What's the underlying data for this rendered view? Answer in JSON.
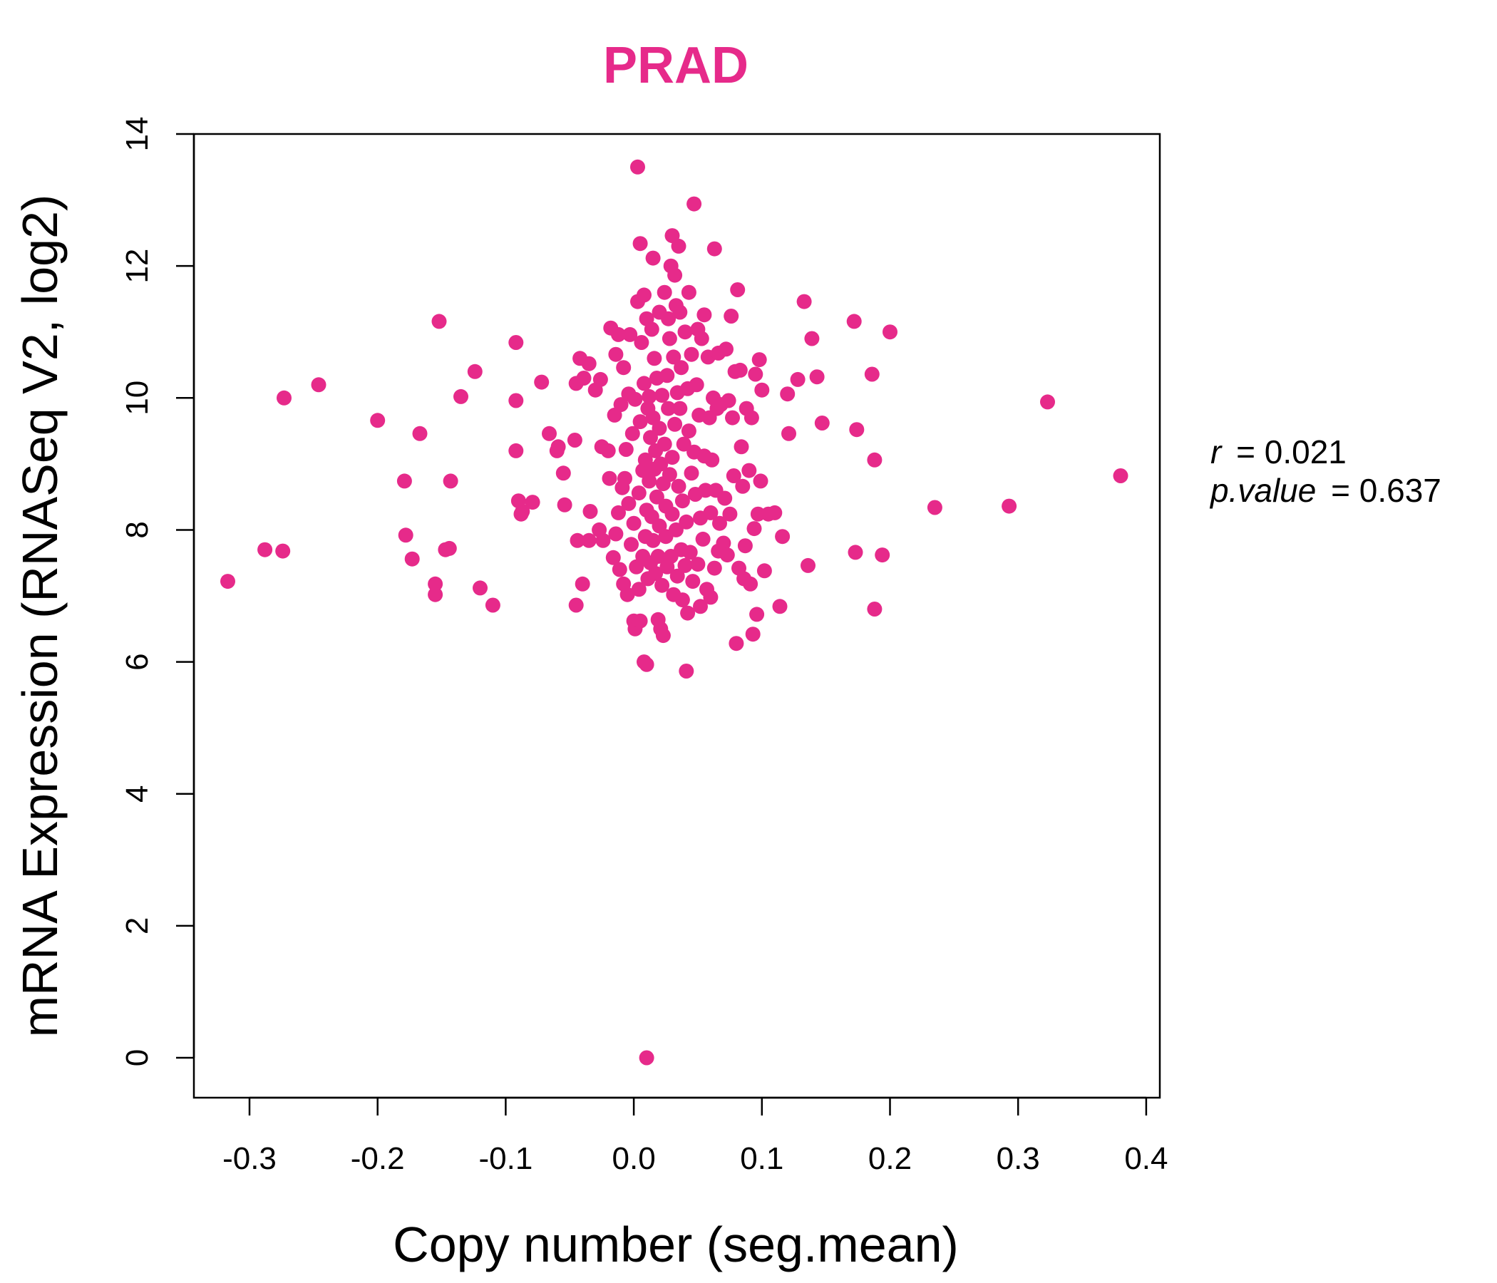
{
  "chart_data": {
    "type": "scatter",
    "title": "PRAD",
    "xlabel": "Copy number (seg.mean)",
    "ylabel": "mRNA Expression (RNASeq V2, log2)",
    "xlim": [
      -0.3,
      0.4
    ],
    "ylim": [
      0,
      14
    ],
    "x_ticks": [
      "-0.3",
      "-0.2",
      "-0.1",
      "0.0",
      "0.1",
      "0.2",
      "0.3",
      "0.4"
    ],
    "y_ticks": [
      "0",
      "2",
      "4",
      "6",
      "8",
      "10",
      "12",
      "14"
    ],
    "point_color": "#e62a8a",
    "title_color": "#e62a8a",
    "stats": {
      "r_label": "r",
      "r_value": "= 0.021",
      "p_label": "p.value",
      "p_value": "= 0.637"
    },
    "points": [
      [
        -0.317,
        7.22
      ],
      [
        -0.288,
        7.7
      ],
      [
        -0.274,
        7.68
      ],
      [
        -0.273,
        10.0
      ],
      [
        -0.246,
        10.2
      ],
      [
        -0.2,
        9.66
      ],
      [
        -0.179,
        8.74
      ],
      [
        -0.178,
        7.92
      ],
      [
        -0.173,
        7.56
      ],
      [
        -0.167,
        9.46
      ],
      [
        -0.155,
        7.18
      ],
      [
        -0.155,
        7.02
      ],
      [
        -0.152,
        11.16
      ],
      [
        -0.147,
        7.7
      ],
      [
        -0.144,
        7.72
      ],
      [
        -0.143,
        8.74
      ],
      [
        -0.135,
        10.02
      ],
      [
        -0.124,
        10.4
      ],
      [
        -0.12,
        7.12
      ],
      [
        -0.11,
        6.86
      ],
      [
        -0.092,
        10.84
      ],
      [
        -0.092,
        9.96
      ],
      [
        -0.092,
        9.2
      ],
      [
        -0.09,
        8.44
      ],
      [
        -0.088,
        8.24
      ],
      [
        -0.087,
        8.28
      ],
      [
        -0.079,
        8.42
      ],
      [
        -0.072,
        10.24
      ],
      [
        -0.066,
        9.46
      ],
      [
        -0.06,
        9.2
      ],
      [
        -0.059,
        9.26
      ],
      [
        -0.055,
        8.86
      ],
      [
        -0.054,
        8.38
      ],
      [
        -0.046,
        9.36
      ],
      [
        -0.045,
        10.22
      ],
      [
        -0.045,
        6.86
      ],
      [
        -0.044,
        7.84
      ],
      [
        -0.042,
        10.6
      ],
      [
        -0.04,
        7.18
      ],
      [
        -0.039,
        10.3
      ],
      [
        -0.035,
        10.52
      ],
      [
        -0.035,
        7.84
      ],
      [
        -0.034,
        8.28
      ],
      [
        -0.03,
        10.12
      ],
      [
        -0.027,
        8.0
      ],
      [
        -0.026,
        10.28
      ],
      [
        -0.025,
        9.26
      ],
      [
        -0.024,
        7.84
      ],
      [
        -0.02,
        9.2
      ],
      [
        -0.019,
        8.78
      ],
      [
        -0.018,
        11.06
      ],
      [
        -0.016,
        7.58
      ],
      [
        -0.015,
        9.74
      ],
      [
        -0.014,
        7.94
      ],
      [
        -0.014,
        10.66
      ],
      [
        -0.012,
        8.26
      ],
      [
        -0.012,
        10.96
      ],
      [
        -0.011,
        7.4
      ],
      [
        -0.01,
        9.9
      ],
      [
        -0.009,
        8.64
      ],
      [
        -0.008,
        7.18
      ],
      [
        -0.008,
        10.46
      ],
      [
        -0.007,
        8.78
      ],
      [
        -0.006,
        9.22
      ],
      [
        -0.005,
        7.02
      ],
      [
        -0.004,
        10.06
      ],
      [
        -0.004,
        8.4
      ],
      [
        -0.003,
        10.96
      ],
      [
        -0.002,
        7.78
      ],
      [
        -0.001,
        9.46
      ],
      [
        0.0,
        6.62
      ],
      [
        0.0,
        8.1
      ],
      [
        0.001,
        6.5
      ],
      [
        0.001,
        9.98
      ],
      [
        0.002,
        7.44
      ],
      [
        0.003,
        11.46
      ],
      [
        0.003,
        13.5
      ],
      [
        0.004,
        8.56
      ],
      [
        0.004,
        7.1
      ],
      [
        0.005,
        12.34
      ],
      [
        0.005,
        9.64
      ],
      [
        0.005,
        6.62
      ],
      [
        0.006,
        10.84
      ],
      [
        0.007,
        8.9
      ],
      [
        0.007,
        7.6
      ],
      [
        0.008,
        11.56
      ],
      [
        0.008,
        6.0
      ],
      [
        0.008,
        10.22
      ],
      [
        0.009,
        9.06
      ],
      [
        0.009,
        7.9
      ],
      [
        0.01,
        11.2
      ],
      [
        0.01,
        8.3
      ],
      [
        0.01,
        5.96
      ],
      [
        0.01,
        0.0
      ],
      [
        0.011,
        9.84
      ],
      [
        0.011,
        7.26
      ],
      [
        0.012,
        8.74
      ],
      [
        0.012,
        10.02
      ],
      [
        0.013,
        7.5
      ],
      [
        0.013,
        9.4
      ],
      [
        0.014,
        11.04
      ],
      [
        0.014,
        8.2
      ],
      [
        0.015,
        12.12
      ],
      [
        0.015,
        9.7
      ],
      [
        0.015,
        7.84
      ],
      [
        0.016,
        8.92
      ],
      [
        0.016,
        10.6
      ],
      [
        0.017,
        7.34
      ],
      [
        0.017,
        9.2
      ],
      [
        0.018,
        8.5
      ],
      [
        0.018,
        10.3
      ],
      [
        0.019,
        7.6
      ],
      [
        0.019,
        6.64
      ],
      [
        0.02,
        9.54
      ],
      [
        0.02,
        8.06
      ],
      [
        0.02,
        11.3
      ],
      [
        0.021,
        6.5
      ],
      [
        0.021,
        9.0
      ],
      [
        0.022,
        7.16
      ],
      [
        0.022,
        10.04
      ],
      [
        0.023,
        8.7
      ],
      [
        0.023,
        6.4
      ],
      [
        0.024,
        11.6
      ],
      [
        0.024,
        9.3
      ],
      [
        0.025,
        7.9
      ],
      [
        0.025,
        8.36
      ],
      [
        0.026,
        10.34
      ],
      [
        0.026,
        7.44
      ],
      [
        0.027,
        9.84
      ],
      [
        0.027,
        11.2
      ],
      [
        0.028,
        8.84
      ],
      [
        0.028,
        10.9
      ],
      [
        0.029,
        7.6
      ],
      [
        0.029,
        12.0
      ],
      [
        0.03,
        9.1
      ],
      [
        0.03,
        12.46
      ],
      [
        0.03,
        8.24
      ],
      [
        0.031,
        10.62
      ],
      [
        0.031,
        7.02
      ],
      [
        0.032,
        11.86
      ],
      [
        0.032,
        9.6
      ],
      [
        0.033,
        8.0
      ],
      [
        0.033,
        11.4
      ],
      [
        0.034,
        7.3
      ],
      [
        0.034,
        10.08
      ],
      [
        0.035,
        12.3
      ],
      [
        0.035,
        8.66
      ],
      [
        0.036,
        9.84
      ],
      [
        0.036,
        11.3
      ],
      [
        0.037,
        7.7
      ],
      [
        0.037,
        10.46
      ],
      [
        0.038,
        8.44
      ],
      [
        0.038,
        6.94
      ],
      [
        0.039,
        9.3
      ],
      [
        0.04,
        11.0
      ],
      [
        0.04,
        7.46
      ],
      [
        0.041,
        5.86
      ],
      [
        0.041,
        8.12
      ],
      [
        0.042,
        10.14
      ],
      [
        0.042,
        6.74
      ],
      [
        0.043,
        9.5
      ],
      [
        0.043,
        11.6
      ],
      [
        0.044,
        7.66
      ],
      [
        0.045,
        8.86
      ],
      [
        0.045,
        10.66
      ],
      [
        0.046,
        7.22
      ],
      [
        0.047,
        9.18
      ],
      [
        0.047,
        12.94
      ],
      [
        0.048,
        8.54
      ],
      [
        0.049,
        10.2
      ],
      [
        0.05,
        7.48
      ],
      [
        0.05,
        11.04
      ],
      [
        0.051,
        9.74
      ],
      [
        0.052,
        8.18
      ],
      [
        0.052,
        6.84
      ],
      [
        0.053,
        10.9
      ],
      [
        0.054,
        7.86
      ],
      [
        0.055,
        9.12
      ],
      [
        0.055,
        11.26
      ],
      [
        0.056,
        8.6
      ],
      [
        0.057,
        7.1
      ],
      [
        0.058,
        10.62
      ],
      [
        0.059,
        9.7
      ],
      [
        0.06,
        8.26
      ],
      [
        0.06,
        6.98
      ],
      [
        0.061,
        9.06
      ],
      [
        0.062,
        10.0
      ],
      [
        0.063,
        12.26
      ],
      [
        0.063,
        7.42
      ],
      [
        0.064,
        8.6
      ],
      [
        0.065,
        9.84
      ],
      [
        0.066,
        10.68
      ],
      [
        0.066,
        7.68
      ],
      [
        0.067,
        8.1
      ],
      [
        0.068,
        9.9
      ],
      [
        0.07,
        7.8
      ],
      [
        0.071,
        8.48
      ],
      [
        0.072,
        10.74
      ],
      [
        0.073,
        7.62
      ],
      [
        0.074,
        9.96
      ],
      [
        0.075,
        8.24
      ],
      [
        0.076,
        11.24
      ],
      [
        0.077,
        9.7
      ],
      [
        0.078,
        8.82
      ],
      [
        0.079,
        10.4
      ],
      [
        0.08,
        6.28
      ],
      [
        0.081,
        11.64
      ],
      [
        0.082,
        7.42
      ],
      [
        0.083,
        10.42
      ],
      [
        0.084,
        9.26
      ],
      [
        0.085,
        8.66
      ],
      [
        0.086,
        7.26
      ],
      [
        0.087,
        7.76
      ],
      [
        0.088,
        9.84
      ],
      [
        0.09,
        8.9
      ],
      [
        0.091,
        7.18
      ],
      [
        0.092,
        9.7
      ],
      [
        0.093,
        6.42
      ],
      [
        0.094,
        8.02
      ],
      [
        0.095,
        10.36
      ],
      [
        0.096,
        6.72
      ],
      [
        0.097,
        8.24
      ],
      [
        0.098,
        10.58
      ],
      [
        0.099,
        8.74
      ],
      [
        0.1,
        10.12
      ],
      [
        0.102,
        7.38
      ],
      [
        0.105,
        8.24
      ],
      [
        0.11,
        8.26
      ],
      [
        0.114,
        6.84
      ],
      [
        0.116,
        7.9
      ],
      [
        0.12,
        10.06
      ],
      [
        0.121,
        9.46
      ],
      [
        0.128,
        10.28
      ],
      [
        0.133,
        11.46
      ],
      [
        0.136,
        7.46
      ],
      [
        0.139,
        10.9
      ],
      [
        0.143,
        10.32
      ],
      [
        0.147,
        9.62
      ],
      [
        0.172,
        11.16
      ],
      [
        0.173,
        7.66
      ],
      [
        0.174,
        9.52
      ],
      [
        0.186,
        10.36
      ],
      [
        0.188,
        9.06
      ],
      [
        0.188,
        6.8
      ],
      [
        0.194,
        7.62
      ],
      [
        0.2,
        11.0
      ],
      [
        0.235,
        8.34
      ],
      [
        0.293,
        8.36
      ],
      [
        0.323,
        9.94
      ],
      [
        0.38,
        8.82
      ]
    ]
  }
}
